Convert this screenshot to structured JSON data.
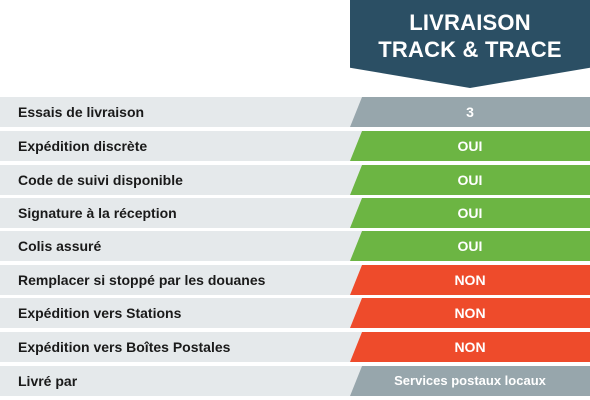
{
  "header": {
    "line1": "LIVRAISON",
    "line2": "TRACK & TRACE"
  },
  "rows": [
    {
      "label": "Essais de livraison",
      "value": "3",
      "status": "neutral"
    },
    {
      "label": "Expédition discrète",
      "value": "OUI",
      "status": "oui"
    },
    {
      "label": "Code de suivi disponible",
      "value": "OUI",
      "status": "oui"
    },
    {
      "label": "Signature à la réception",
      "value": "OUI",
      "status": "oui"
    },
    {
      "label": "Colis assuré",
      "value": "OUI",
      "status": "oui"
    },
    {
      "label": "Remplacer si stoppé par les douanes",
      "value": "NON",
      "status": "non"
    },
    {
      "label": "Expédition vers Stations",
      "value": "NON",
      "status": "non"
    },
    {
      "label": "Expédition vers Boîtes Postales",
      "value": "NON",
      "status": "non"
    },
    {
      "label": "Livré par",
      "value": "Services postaux locaux",
      "status": "neutral"
    }
  ],
  "colors": {
    "header": "#2b4f64",
    "oui": "#6cb543",
    "non": "#ee4b2b",
    "neutral": "#97a6ac",
    "label_bg": "#e5e9eb"
  }
}
